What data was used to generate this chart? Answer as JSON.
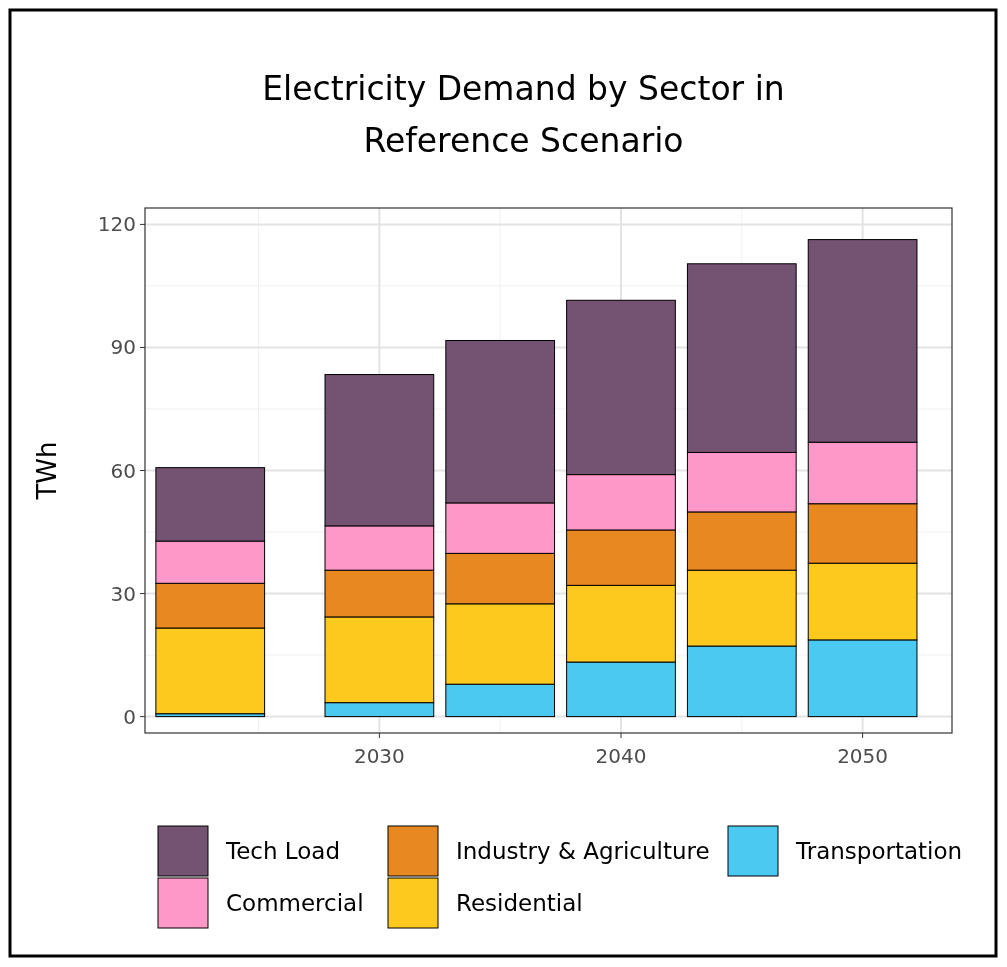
{
  "chart_data": {
    "type": "bar",
    "stacked": true,
    "title": "Electricity Demand by Sector in Reference Scenario",
    "ylabel": "TWh",
    "x": [
      2023,
      2030,
      2035,
      2040,
      2045,
      2050
    ],
    "xlim": [
      2020.3,
      2053.7
    ],
    "xticks": [
      2030,
      2040,
      2050
    ],
    "ylim": [
      -4,
      124
    ],
    "yticks": [
      0,
      30,
      60,
      90,
      120
    ],
    "grid": true,
    "legend": "bottom",
    "series": [
      {
        "name": "Transportation",
        "color": "#4cc9f0",
        "values": [
          0.7,
          3.4,
          7.9,
          13.3,
          17.2,
          18.7
        ]
      },
      {
        "name": "Residential",
        "color": "#fdc91f",
        "values": [
          20.9,
          20.9,
          19.6,
          18.7,
          18.5,
          18.7
        ]
      },
      {
        "name": "Industry & Agriculture",
        "color": "#e88820",
        "values": [
          10.9,
          11.4,
          12.3,
          13.5,
          14.2,
          14.5
        ]
      },
      {
        "name": "Commercial",
        "color": "#fe98c8",
        "values": [
          10.3,
          10.8,
          12.3,
          13.5,
          14.5,
          15.0
        ]
      },
      {
        "name": "Tech Load",
        "color": "#745271",
        "values": [
          17.9,
          36.9,
          39.6,
          42.5,
          46.0,
          49.4
        ]
      }
    ]
  }
}
